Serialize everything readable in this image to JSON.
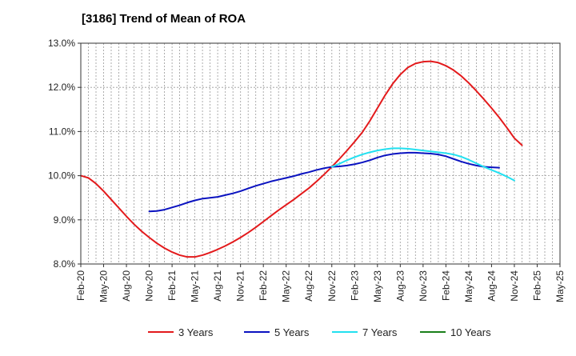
{
  "chart_data": {
    "type": "line",
    "title": "[3186]  Trend of Mean of ROA",
    "xlabel": "",
    "ylabel": "",
    "ylim": [
      8.0,
      13.0
    ],
    "yticks": [
      8.0,
      9.0,
      10.0,
      11.0,
      12.0,
      13.0
    ],
    "ytick_labels": [
      "8.0%",
      "9.0%",
      "10.0%",
      "11.0%",
      "12.0%",
      "13.0%"
    ],
    "x_labels": [
      "Feb-20",
      "May-20",
      "Aug-20",
      "Nov-20",
      "Feb-21",
      "May-21",
      "Aug-21",
      "Nov-21",
      "Feb-22",
      "May-22",
      "Aug-22",
      "Nov-22",
      "Feb-23",
      "May-23",
      "Aug-23",
      "Nov-23",
      "Feb-24",
      "May-24",
      "Aug-24",
      "Nov-24",
      "Feb-25",
      "May-25"
    ],
    "grid": true,
    "legend_position": "bottom",
    "series": [
      {
        "name": "3 Years",
        "color": "#e31a1c",
        "start_index": 0,
        "values": [
          10.0,
          9.95,
          9.82,
          9.65,
          9.46,
          9.27,
          9.08,
          8.9,
          8.74,
          8.6,
          8.47,
          8.36,
          8.27,
          8.2,
          8.16,
          8.16,
          8.2,
          8.26,
          8.33,
          8.41,
          8.5,
          8.6,
          8.71,
          8.83,
          8.96,
          9.09,
          9.22,
          9.34,
          9.46,
          9.59,
          9.72,
          9.87,
          10.03,
          10.2,
          10.38,
          10.57,
          10.77,
          10.98,
          11.24,
          11.53,
          11.82,
          12.08,
          12.29,
          12.45,
          12.54,
          12.58,
          12.59,
          12.56,
          12.49,
          12.39,
          12.26,
          12.1,
          11.92,
          11.73,
          11.53,
          11.32,
          11.09,
          10.85,
          10.69
        ]
      },
      {
        "name": "5 Years",
        "color": "#0a12c0",
        "start_index": 9,
        "values": [
          9.19,
          9.2,
          9.23,
          9.28,
          9.33,
          9.39,
          9.44,
          9.48,
          9.5,
          9.52,
          9.56,
          9.6,
          9.65,
          9.71,
          9.77,
          9.82,
          9.87,
          9.91,
          9.95,
          9.99,
          10.04,
          10.08,
          10.13,
          10.17,
          10.2,
          10.21,
          10.23,
          10.26,
          10.3,
          10.35,
          10.41,
          10.46,
          10.49,
          10.51,
          10.52,
          10.52,
          10.51,
          10.5,
          10.48,
          10.44,
          10.38,
          10.32,
          10.27,
          10.23,
          10.2,
          10.19,
          10.18
        ]
      },
      {
        "name": "7 Years",
        "color": "#22e0f0",
        "start_index": 33,
        "values": [
          10.2,
          10.27,
          10.35,
          10.42,
          10.48,
          10.53,
          10.57,
          10.6,
          10.62,
          10.62,
          10.61,
          10.59,
          10.57,
          10.55,
          10.53,
          10.51,
          10.48,
          10.43,
          10.36,
          10.28,
          10.2,
          10.13,
          10.06,
          9.98,
          9.89
        ]
      },
      {
        "name": "10 Years",
        "color": "#1a7f1a",
        "start_index": 0,
        "values": []
      }
    ]
  }
}
